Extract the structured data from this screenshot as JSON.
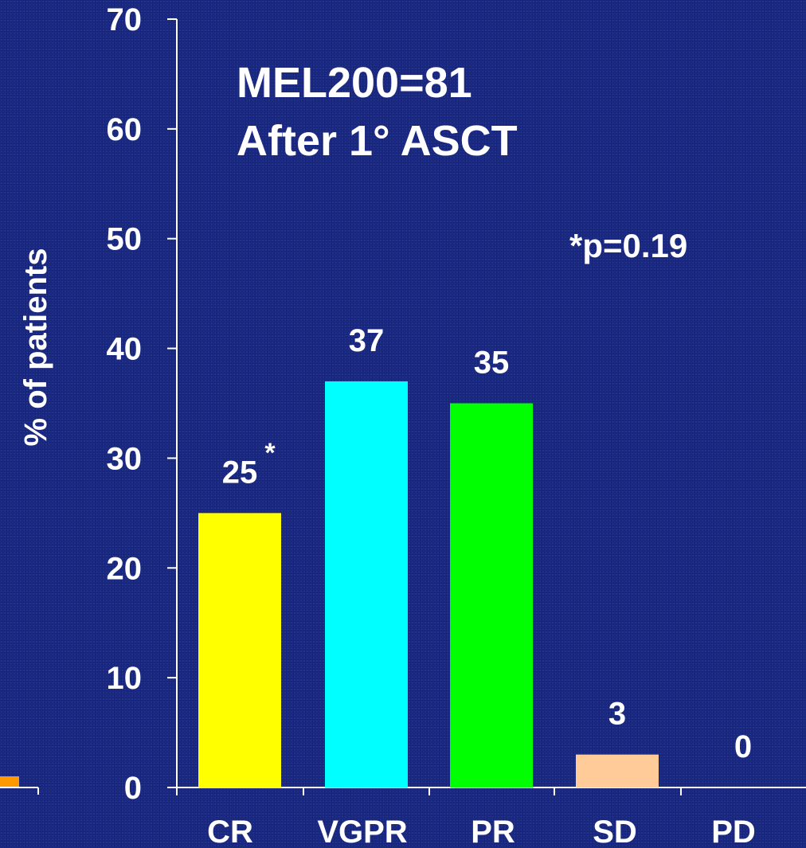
{
  "chart_data": {
    "type": "bar",
    "title_lines": [
      "MEL200=81",
      "After 1° ASCT"
    ],
    "annotation": "*p=0.19",
    "asterisk": "*",
    "xlabel": "",
    "ylabel": "% of patients",
    "categories": [
      "CR",
      "VGPR",
      "PR",
      "SD",
      "PD"
    ],
    "values": [
      25,
      37,
      35,
      3,
      0
    ],
    "value_labels": [
      "25",
      "37",
      "35",
      "3",
      "0"
    ],
    "bar_colors": [
      "#ffff00",
      "#00ffff",
      "#00ff00",
      "#ffcc99",
      "#1a2a85"
    ],
    "ylim": [
      0,
      70
    ],
    "yticks": [
      0,
      10,
      20,
      30,
      40,
      50,
      60,
      70
    ],
    "grid": false,
    "legend": "none"
  },
  "background_color": "#1a2a85",
  "partial_left_bar_color": "#ff9900"
}
